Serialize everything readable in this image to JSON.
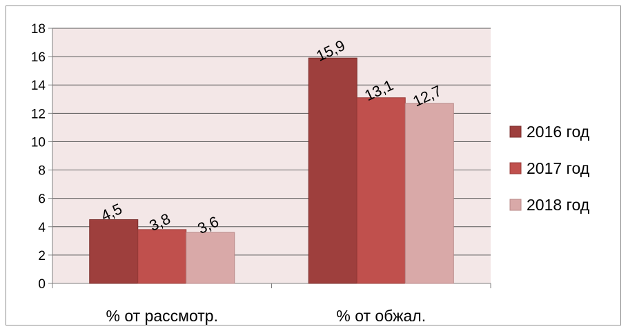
{
  "chart_data": {
    "type": "bar",
    "categories": [
      "% от рассмотр.",
      "% от обжал."
    ],
    "series": [
      {
        "name": "2016 год",
        "values": [
          4.5,
          15.9
        ],
        "labels": [
          "4,5",
          "15,9"
        ]
      },
      {
        "name": "2017 год",
        "values": [
          3.8,
          13.1
        ],
        "labels": [
          "3,8",
          "13,1"
        ]
      },
      {
        "name": "2018 год",
        "values": [
          3.6,
          12.7
        ],
        "labels": [
          "3,6",
          "12,7"
        ]
      }
    ],
    "title": "",
    "xlabel": "",
    "ylabel": "",
    "ylim": [
      0,
      18
    ],
    "yticks": [
      "0",
      "2",
      "4",
      "6",
      "8",
      "10",
      "12",
      "14",
      "16",
      "18"
    ],
    "grid": true,
    "legend_position": "right",
    "colors": {
      "series": [
        "#9e3f3d",
        "#c0504d",
        "#d9a9a8"
      ],
      "series_stroke": [
        "#7a2d2b",
        "#9a3b38",
        "#b88887"
      ],
      "plot_background": "#f3e7e7",
      "gridline": "#595959",
      "axis": "#7f7f7f"
    }
  }
}
